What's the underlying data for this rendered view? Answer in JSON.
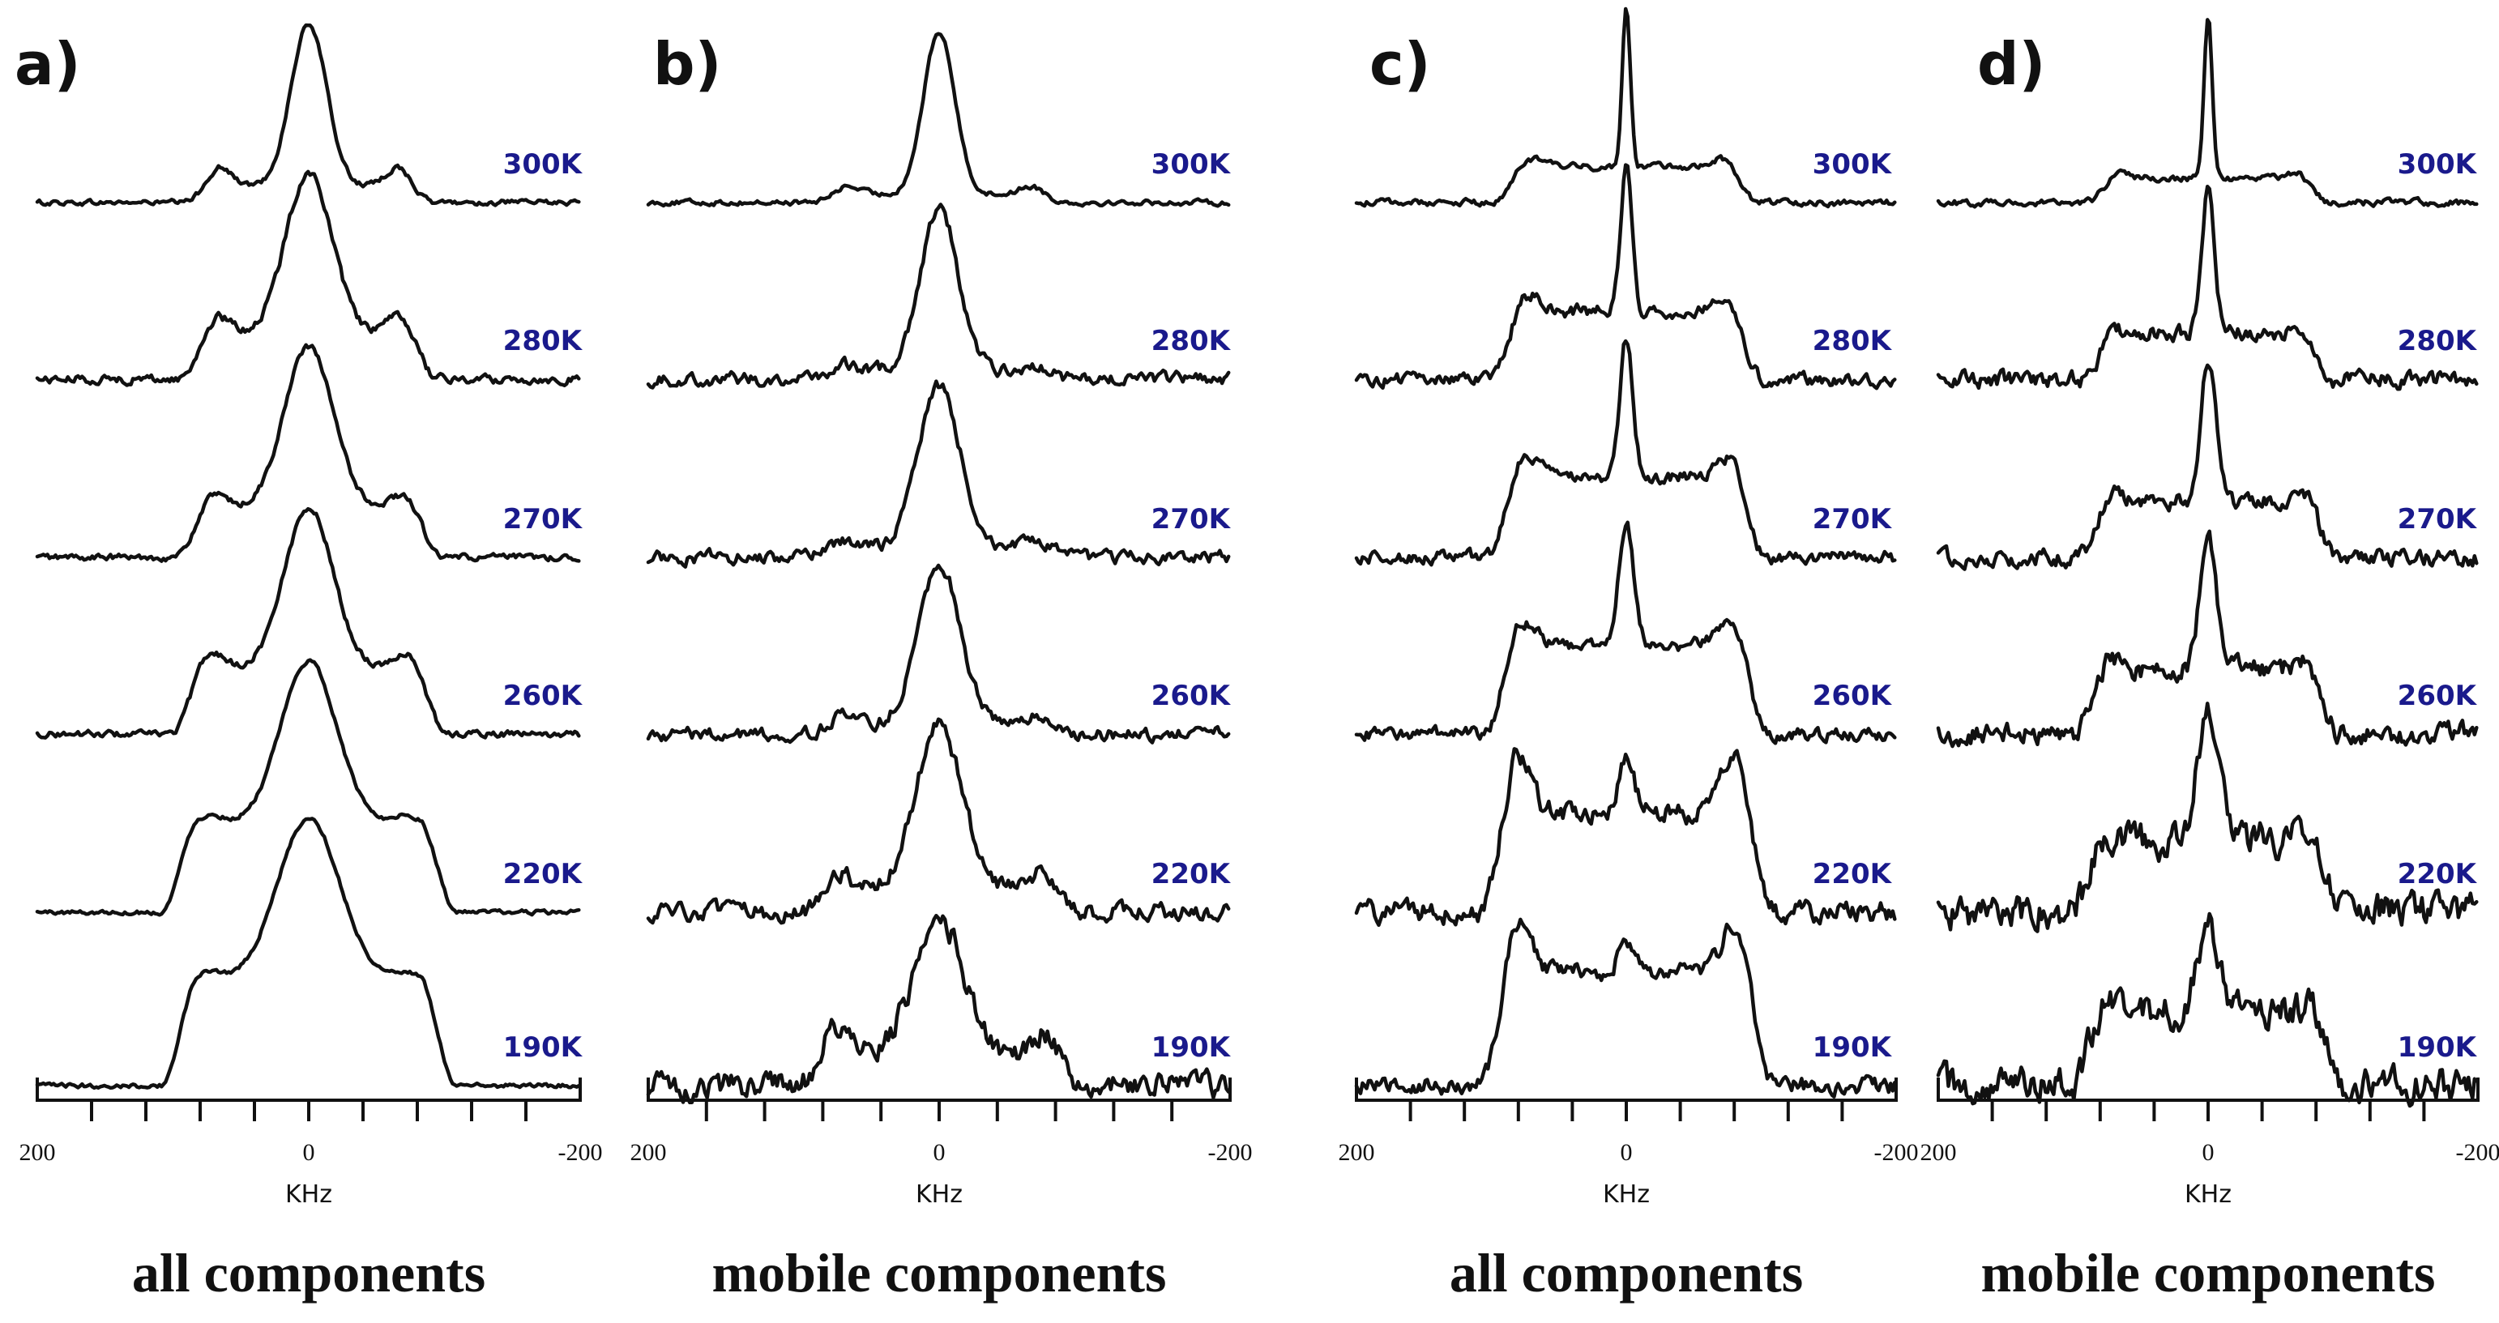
{
  "chart_data": [
    {
      "type": "line",
      "panel_label": "a)",
      "caption": "all components",
      "xlabel": "KHz",
      "xlim": [
        200,
        -200
      ],
      "x_ticks": [
        200,
        0,
        -200
      ],
      "series": [
        {
          "name": "300K",
          "center_peak": 1.0,
          "center_width": 22,
          "broad_amp": 0.1,
          "broad_half_width": 78,
          "horn_amp": 0.12,
          "horn_pos": 66,
          "noise": 0.012
        },
        {
          "name": "280K",
          "center_peak": 1.0,
          "center_width": 28,
          "broad_amp": 0.28,
          "broad_half_width": 82,
          "horn_amp": 0.1,
          "horn_pos": 66,
          "noise": 0.02
        },
        {
          "name": "270K",
          "center_peak": 1.0,
          "center_width": 30,
          "broad_amp": 0.3,
          "broad_half_width": 85,
          "horn_amp": 0.08,
          "horn_pos": 68,
          "noise": 0.015
        },
        {
          "name": "260K",
          "center_peak": 1.0,
          "center_width": 30,
          "broad_amp": 0.4,
          "broad_half_width": 88,
          "horn_amp": 0.1,
          "horn_pos": 70,
          "noise": 0.015
        },
        {
          "name": "220K",
          "center_peak": 1.0,
          "center_width": 34,
          "broad_amp": 0.55,
          "broad_half_width": 95,
          "horn_amp": 0.05,
          "horn_pos": 72,
          "noise": 0.01
        },
        {
          "name": "190K",
          "center_peak": 1.0,
          "center_width": 38,
          "broad_amp": 0.65,
          "broad_half_width": 95,
          "horn_amp": 0.05,
          "horn_pos": 72,
          "noise": 0.01
        }
      ]
    },
    {
      "type": "line",
      "panel_label": "b)",
      "caption": "mobile components",
      "xlabel": "KHz",
      "xlim": [
        200,
        -200
      ],
      "x_ticks": [
        200,
        0,
        -200
      ],
      "series": [
        {
          "name": "300K",
          "center_peak": 1.0,
          "center_width": 18,
          "broad_amp": 0.05,
          "broad_half_width": 70,
          "horn_amp": 0.06,
          "horn_pos": 65,
          "noise": 0.012
        },
        {
          "name": "280K",
          "center_peak": 1.0,
          "center_width": 22,
          "broad_amp": 0.05,
          "broad_half_width": 72,
          "horn_amp": 0.05,
          "horn_pos": 68,
          "noise": 0.03
        },
        {
          "name": "270K",
          "center_peak": 1.0,
          "center_width": 24,
          "broad_amp": 0.06,
          "broad_half_width": 75,
          "horn_amp": 0.05,
          "horn_pos": 70,
          "noise": 0.03
        },
        {
          "name": "260K",
          "center_peak": 1.0,
          "center_width": 24,
          "broad_amp": 0.06,
          "broad_half_width": 75,
          "horn_amp": 0.06,
          "horn_pos": 70,
          "noise": 0.03
        },
        {
          "name": "220K",
          "center_peak": 1.0,
          "center_width": 26,
          "broad_amp": 0.15,
          "broad_half_width": 80,
          "horn_amp": 0.12,
          "horn_pos": 72,
          "noise": 0.04
        },
        {
          "name": "190K",
          "center_peak": 0.85,
          "center_width": 28,
          "broad_amp": 0.2,
          "broad_half_width": 82,
          "horn_amp": 0.15,
          "horn_pos": 74,
          "noise": 0.06
        }
      ]
    },
    {
      "type": "line",
      "panel_label": "c)",
      "caption": "all components",
      "xlabel": "KHz",
      "xlim": [
        200,
        -200
      ],
      "x_ticks": [
        200,
        0,
        -200
      ],
      "series": [
        {
          "name": "300K",
          "center_peak": 1.0,
          "center_width": 5,
          "broad_amp": 0.22,
          "broad_half_width": 85,
          "horn_amp": 0.05,
          "horn_pos": 70,
          "noise": 0.015
        },
        {
          "name": "280K",
          "center_peak": 0.9,
          "center_width": 7,
          "broad_amp": 0.42,
          "broad_half_width": 88,
          "horn_amp": 0.1,
          "horn_pos": 72,
          "noise": 0.03
        },
        {
          "name": "270K",
          "center_peak": 0.85,
          "center_width": 8,
          "broad_amp": 0.5,
          "broad_half_width": 90,
          "horn_amp": 0.12,
          "horn_pos": 74,
          "noise": 0.03
        },
        {
          "name": "260K",
          "center_peak": 0.75,
          "center_width": 9,
          "broad_amp": 0.55,
          "broad_half_width": 92,
          "horn_amp": 0.15,
          "horn_pos": 76,
          "noise": 0.03
        },
        {
          "name": "220K",
          "center_peak": 0.3,
          "center_width": 10,
          "broad_amp": 0.62,
          "broad_half_width": 95,
          "horn_amp": 0.35,
          "horn_pos": 80,
          "noise": 0.05
        },
        {
          "name": "190K",
          "center_peak": 0.2,
          "center_width": 10,
          "broad_amp": 0.7,
          "broad_half_width": 95,
          "horn_amp": 0.3,
          "horn_pos": 80,
          "noise": 0.04
        }
      ]
    },
    {
      "type": "line",
      "panel_label": "d)",
      "caption": "mobile components",
      "xlabel": "KHz",
      "xlim": [
        200,
        -200
      ],
      "x_ticks": [
        200,
        0,
        -200
      ],
      "series": [
        {
          "name": "300K",
          "center_peak": 1.0,
          "center_width": 5,
          "broad_amp": 0.15,
          "broad_half_width": 75,
          "horn_amp": 0.05,
          "horn_pos": 70,
          "noise": 0.015
        },
        {
          "name": "280K",
          "center_peak": 0.9,
          "center_width": 8,
          "broad_amp": 0.28,
          "broad_half_width": 80,
          "horn_amp": 0.05,
          "horn_pos": 72,
          "noise": 0.04
        },
        {
          "name": "270K",
          "center_peak": 0.9,
          "center_width": 9,
          "broad_amp": 0.35,
          "broad_half_width": 82,
          "horn_amp": 0.05,
          "horn_pos": 72,
          "noise": 0.04
        },
        {
          "name": "260K",
          "center_peak": 0.85,
          "center_width": 10,
          "broad_amp": 0.4,
          "broad_half_width": 85,
          "horn_amp": 0.05,
          "horn_pos": 74,
          "noise": 0.05
        },
        {
          "name": "220K",
          "center_peak": 0.75,
          "center_width": 14,
          "broad_amp": 0.45,
          "broad_half_width": 88,
          "horn_amp": 0.05,
          "horn_pos": 75,
          "noise": 0.08
        },
        {
          "name": "190K",
          "center_peak": 0.55,
          "center_width": 14,
          "broad_amp": 0.45,
          "broad_half_width": 88,
          "horn_amp": 0.05,
          "horn_pos": 75,
          "noise": 0.08
        }
      ]
    }
  ],
  "style": {
    "trace_color": "#111111",
    "temperature_label_color": "#1a1a8c",
    "background": "#ffffff"
  }
}
